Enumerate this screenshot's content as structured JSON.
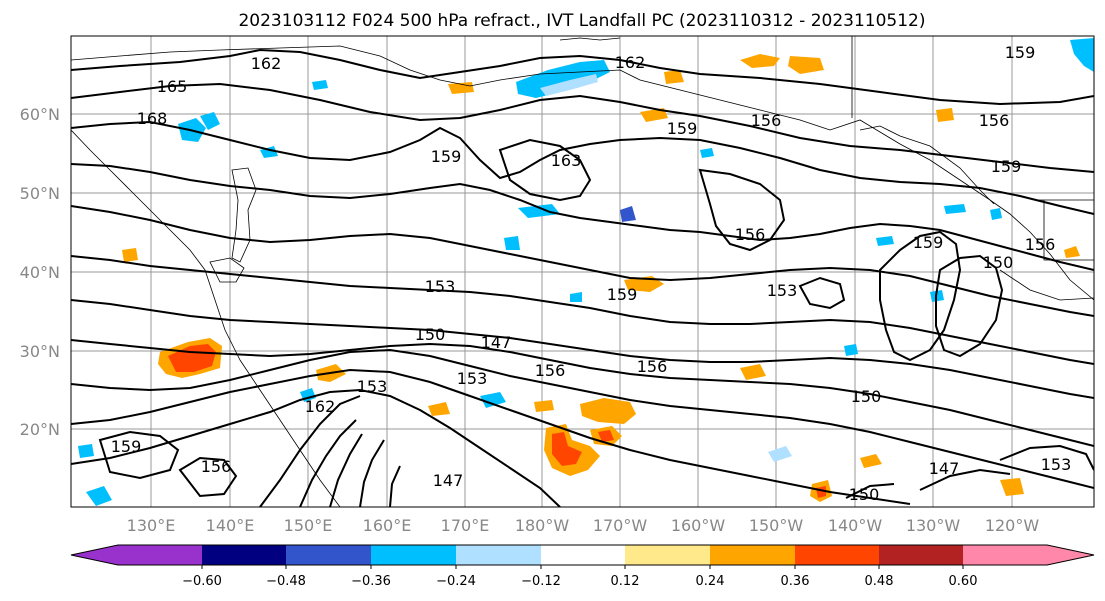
{
  "title": "2023103112 F024 500 hPa refract., IVT Landfall PC (2023110312 - 2023110512)",
  "lat_ticks": [
    "60°N",
    "50°N",
    "40°N",
    "30°N",
    "20°N"
  ],
  "lon_ticks": [
    "130°E",
    "140°E",
    "150°E",
    "160°E",
    "170°E",
    "180°W",
    "170°W",
    "160°W",
    "150°W",
    "140°W",
    "130°W",
    "120°W"
  ],
  "colorbar": {
    "colors": [
      "#9932cc",
      "#000080",
      "#3355cc",
      "#00bfff",
      "#b0e0ff",
      "#ffffff",
      "#ffe98a",
      "#ffa500",
      "#ff4500",
      "#b22222",
      "#ff88aa"
    ],
    "tick_labels": [
      "−0.60",
      "−0.48",
      "−0.36",
      "−0.24",
      "−0.12",
      "0.12",
      "0.24",
      "0.36",
      "0.48",
      "0.60"
    ]
  },
  "contour_labels": [
    "162",
    "165",
    "168",
    "159",
    "162",
    "156",
    "159",
    "163",
    "156",
    "159",
    "156",
    "159",
    "153",
    "153",
    "159",
    "150",
    "147",
    "153",
    "156",
    "156",
    "153",
    "162",
    "159",
    "156",
    "150",
    "147",
    "147",
    "150",
    "153",
    "150",
    "156",
    "159"
  ]
}
